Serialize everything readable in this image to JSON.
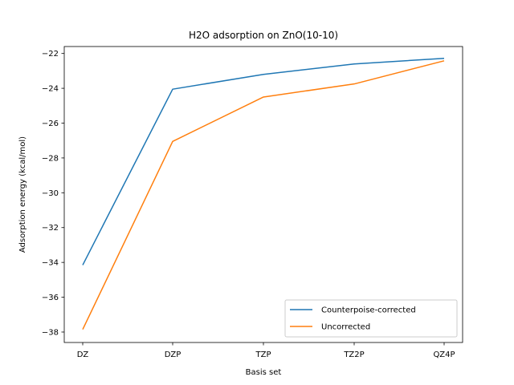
{
  "chart_data": {
    "type": "line",
    "title": "H2O adsorption on ZnO(10-10)",
    "xlabel": "Basis set",
    "ylabel": "Adsorption energy (kcal/mol)",
    "categories": [
      "DZ",
      "DZP",
      "TZP",
      "TZ2P",
      "QZ4P"
    ],
    "ylim": [
      -38.6,
      -21.6
    ],
    "yticks": [
      -38,
      -36,
      -34,
      -32,
      -30,
      -28,
      -26,
      -24,
      -22
    ],
    "grid": false,
    "legend_position": "lower-right",
    "series": [
      {
        "name": "Counterpoise-corrected",
        "color": "#1f77b4",
        "values": [
          -34.15,
          -24.05,
          -23.2,
          -22.6,
          -22.28
        ]
      },
      {
        "name": "Uncorrected",
        "color": "#ff7f0e",
        "values": [
          -37.85,
          -27.05,
          -24.5,
          -23.75,
          -22.42
        ]
      }
    ]
  }
}
